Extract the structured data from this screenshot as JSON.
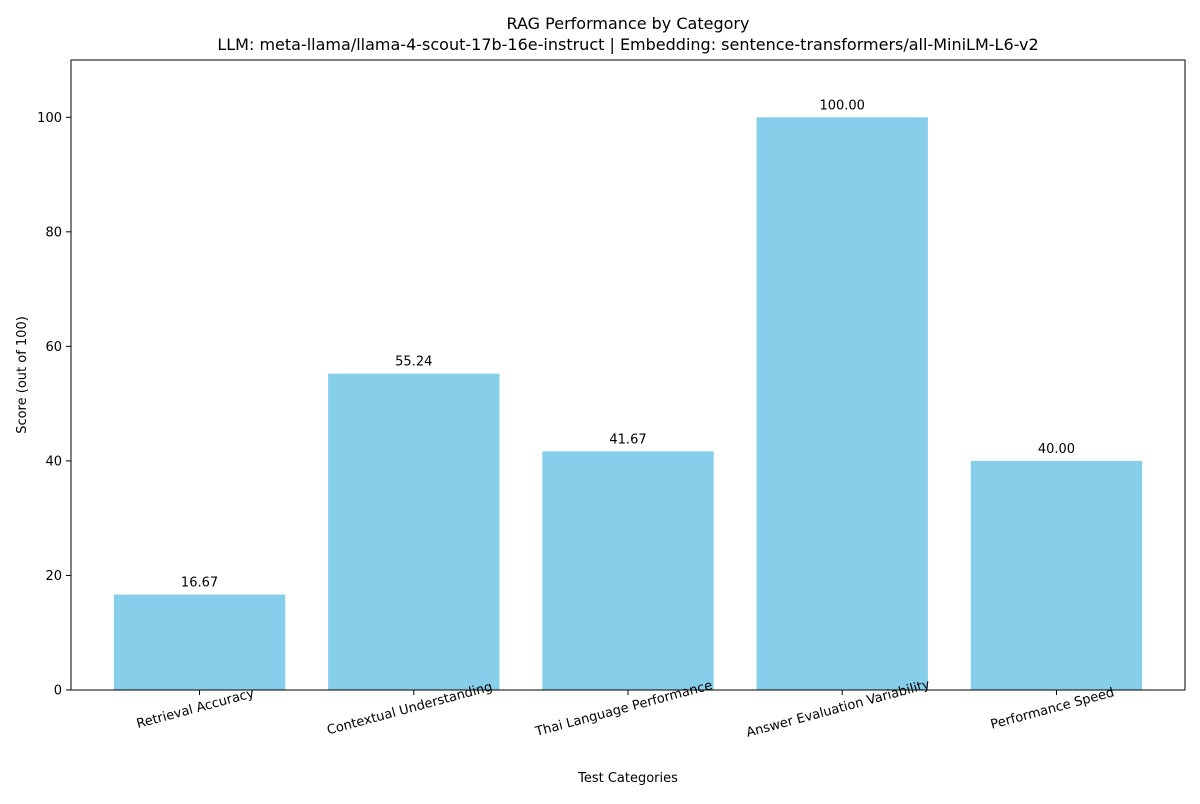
{
  "chart_data": {
    "type": "bar",
    "title": "RAG Performance by Category",
    "subtitle": "LLM: meta-llama/llama-4-scout-17b-16e-instruct | Embedding: sentence-transformers/all-MiniLM-L6-v2",
    "xlabel": "Test Categories",
    "ylabel": "Score (out of 100)",
    "categories": [
      "Retrieval Accuracy",
      "Contextual Understanding",
      "Thai Language Performance",
      "Answer Evaluation Variability",
      "Performance Speed"
    ],
    "values": [
      16.67,
      55.24,
      41.67,
      100.0,
      40.0
    ],
    "data_labels": [
      "16.67",
      "55.24",
      "41.67",
      "100.00",
      "40.00"
    ],
    "ylim": [
      0,
      110
    ],
    "yticks": [
      0,
      20,
      40,
      60,
      80,
      100
    ],
    "grid": false,
    "legend": "none",
    "bar_color": "#87ceeb",
    "axis_color": "#000000"
  }
}
